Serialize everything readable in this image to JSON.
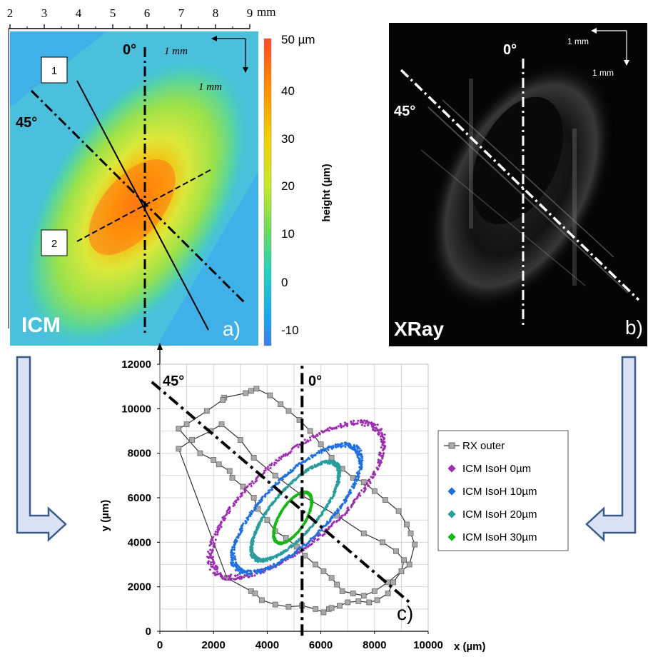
{
  "panel_a": {
    "ruler_ticks": [
      "2",
      "3",
      "4",
      "5",
      "6",
      "7",
      "8",
      "9"
    ],
    "ruler_unit": "mm",
    "label": "ICM",
    "panel_letter": "a)",
    "angle_0": "0°",
    "angle_45": "45°",
    "scale_h": "1 mm",
    "scale_v": "1 mm",
    "box1": "1",
    "box2": "2",
    "colorbar_ticks": [
      "50 µm",
      "40",
      "30",
      "20",
      "10",
      "0",
      "-10"
    ],
    "colorbar_title": "height (µm)"
  },
  "panel_b": {
    "label": "XRay",
    "panel_letter": "b)",
    "angle_0": "0°",
    "angle_45": "45°",
    "scale_h": "1 mm",
    "scale_v": "1 mm"
  },
  "panel_c": {
    "panel_letter": "c)",
    "angle_0": "0°",
    "angle_45": "45°"
  },
  "chart_data": {
    "type": "scatter",
    "title": "",
    "xlabel": "x (µm)",
    "ylabel": "y (µm)",
    "xlim": [
      0,
      10000
    ],
    "ylim": [
      0,
      12000
    ],
    "x_ticks": [
      "0",
      "2000",
      "4000",
      "6000",
      "8000",
      "10000"
    ],
    "y_ticks": [
      "0",
      "2000",
      "4000",
      "6000",
      "8000",
      "10000",
      "12000"
    ],
    "grid": true,
    "legend_position": "right",
    "series": [
      {
        "name": "RX outer",
        "color": "#555555",
        "marker": "square",
        "x": [
          2500,
          3400,
          3550,
          3800,
          4300,
          4800,
          5300,
          5800,
          6100,
          6300,
          6400,
          6700,
          7000,
          7400,
          7800,
          8100,
          8500,
          8700,
          9000,
          9300,
          9500,
          9350,
          9200,
          8900,
          8400,
          8000,
          7600,
          7200,
          6800,
          6400,
          6000,
          5600,
          5200,
          4800,
          4500,
          4100,
          3600,
          3400,
          3200,
          2400,
          2350,
          1750,
          1000,
          700,
          1500,
          2000,
          2200,
          2600,
          2700,
          3100,
          3500,
          3650,
          4000,
          4300,
          4700,
          5100,
          5400,
          5800,
          6100,
          6400,
          6600,
          6800,
          7200,
          7600,
          8000,
          8500,
          9000,
          9100,
          8800,
          8300,
          7600,
          6600,
          5300,
          4300,
          3500,
          3000,
          2300,
          1900,
          1200,
          700
        ],
        "y": [
          2400,
          1800,
          1700,
          1400,
          1200,
          1100,
          1150,
          1000,
          850,
          1000,
          1050,
          1150,
          1300,
          1350,
          1300,
          1400,
          1700,
          2200,
          2700,
          3000,
          3900,
          4400,
          4800,
          5400,
          5900,
          6300,
          6700,
          6900,
          7300,
          7800,
          8400,
          9000,
          9500,
          9900,
          10200,
          10600,
          10900,
          10800,
          10700,
          10500,
          10400,
          9900,
          9300,
          9100,
          8000,
          7700,
          7500,
          7200,
          6900,
          6500,
          6000,
          5500,
          5000,
          4500,
          4200,
          3800,
          3400,
          3000,
          2700,
          2400,
          2100,
          1800,
          1700,
          1600,
          1800,
          2200,
          2700,
          3200,
          3600,
          4000,
          4400,
          5200,
          6100,
          7000,
          7800,
          8600,
          9300,
          9000,
          8600,
          8200
        ]
      },
      {
        "name": "ICM IsoH 0µm",
        "color": "#9b2fae",
        "marker": "diamond",
        "center_x": 5100,
        "center_y": 5900,
        "radius_major": 4400,
        "radius_minor": 1750,
        "rotation_deg": 48
      },
      {
        "name": "ICM IsoH 10µm",
        "color": "#1f6fe0",
        "marker": "diamond",
        "center_x": 5100,
        "center_y": 5500,
        "radius_major": 3500,
        "radius_minor": 1300,
        "rotation_deg": 52
      },
      {
        "name": "ICM IsoH 20µm",
        "color": "#2a9c9c",
        "marker": "diamond",
        "center_x": 5050,
        "center_y": 5400,
        "radius_major": 2600,
        "radius_minor": 900,
        "rotation_deg": 56
      },
      {
        "name": "ICM IsoH 30µm",
        "color": "#19b619",
        "marker": "diamond",
        "center_x": 4950,
        "center_y": 5100,
        "radius_major": 1250,
        "radius_minor": 500,
        "rotation_deg": 64
      }
    ],
    "guide_lines": [
      {
        "label": "0°",
        "x": [
          5300,
          5300
        ],
        "y": [
          -200,
          12000
        ]
      },
      {
        "label": "45°",
        "x": [
          -300,
          9400
        ],
        "y": [
          11200,
          1200
        ]
      }
    ]
  },
  "colors": {
    "colorbar": [
      "#ff3a1a",
      "#ff9a00",
      "#e8e800",
      "#7de04a",
      "#21c7c7",
      "#1e8ee8",
      "#3a6fe0"
    ],
    "arrow_fill": "#d9e3f3",
    "arrow_stroke": "#3b5a8a"
  }
}
